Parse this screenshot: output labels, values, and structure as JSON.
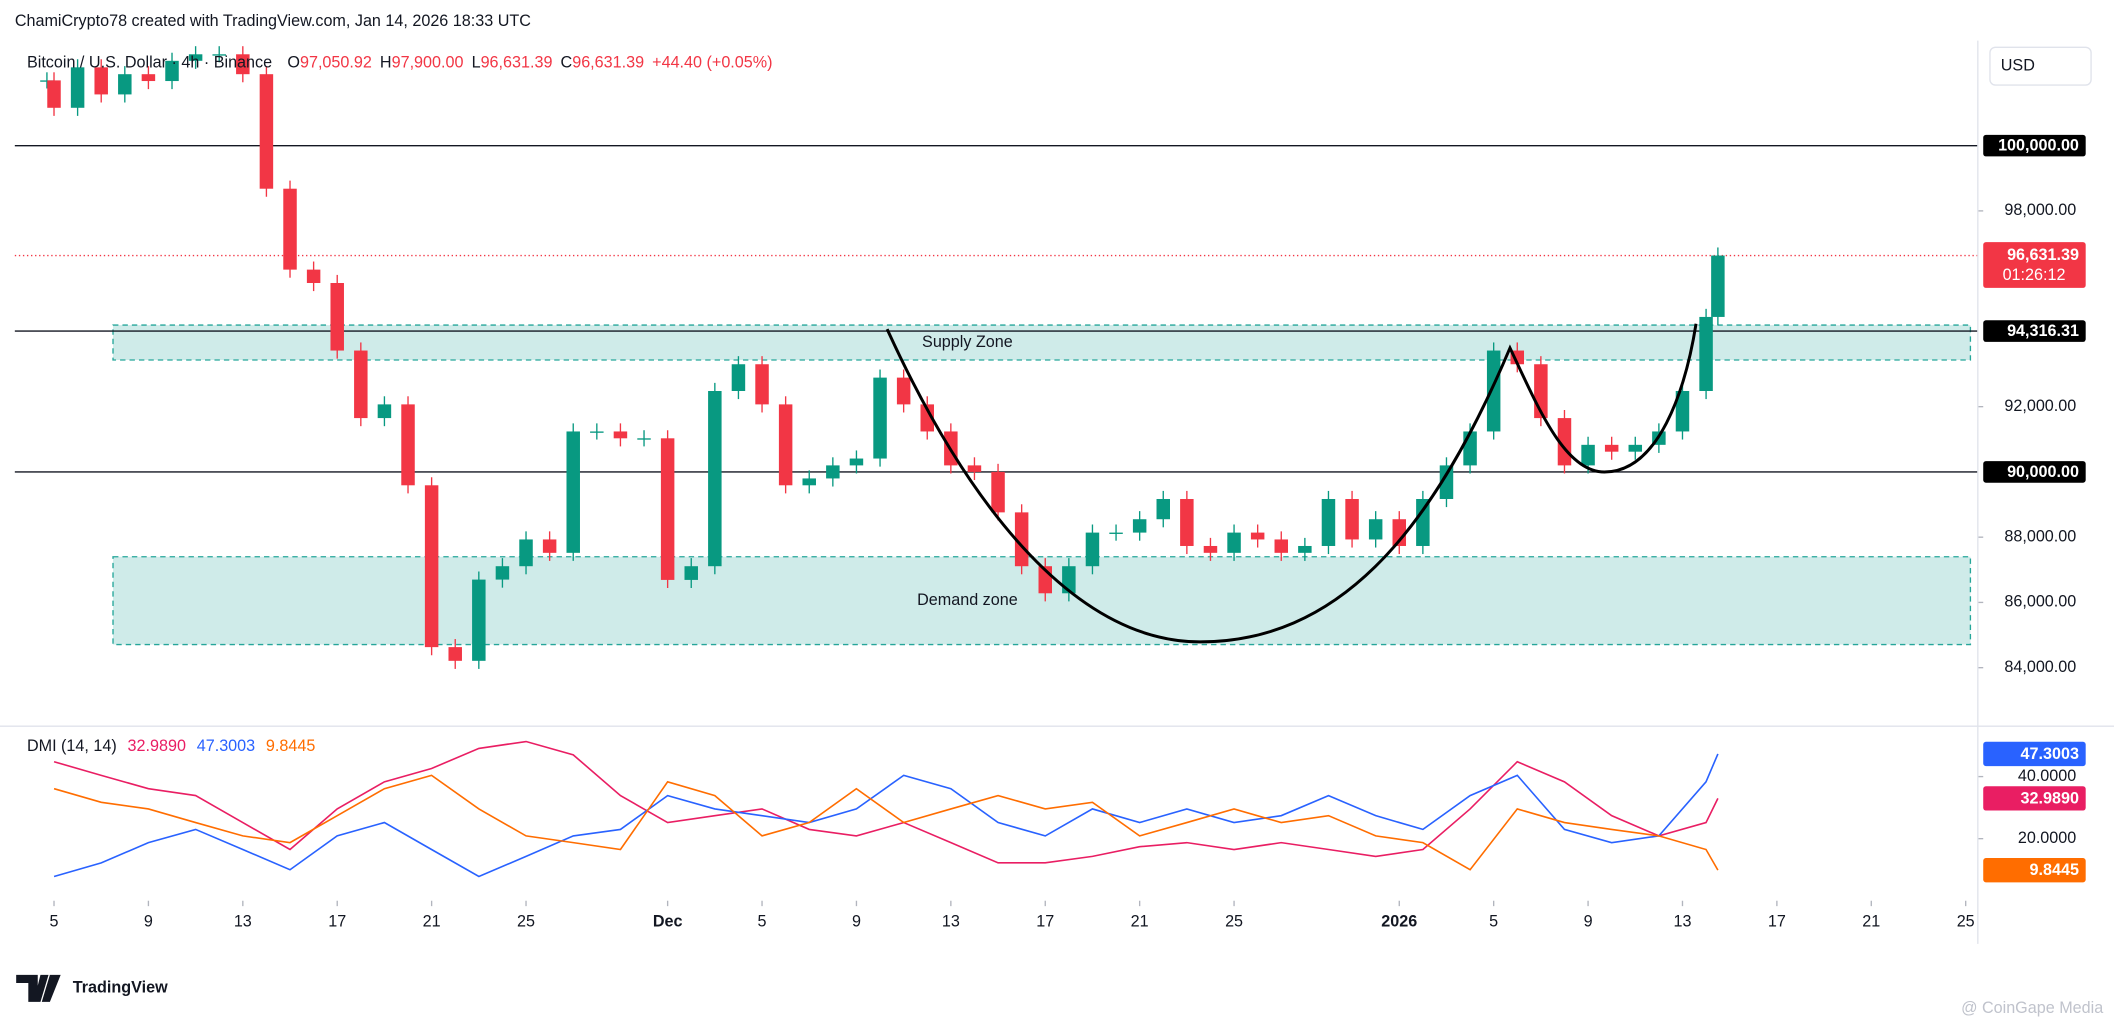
{
  "header": {
    "credit": "ChamiCrypto78 created with TradingView.com, Jan 14, 2026 18:33 UTC",
    "symbol": "Bitcoin / U.S. Dollar · 4h · Binance",
    "ohlc": [
      {
        "key": "O",
        "value": "97,050.92"
      },
      {
        "key": "H",
        "value": "97,900.00"
      },
      {
        "key": "L",
        "value": "96,631.39"
      },
      {
        "key": "C",
        "value": "96,631.39"
      }
    ],
    "change": "+44.40 (+0.05%)",
    "currency": "USD",
    "logo": "TradingView",
    "watermark": "@ CoinGape Media"
  },
  "chart_data": [
    {
      "type": "candlestick",
      "up_color": "#089981",
      "down_color": "#f23645",
      "x": [
        -0.3,
        0,
        1,
        2,
        3,
        4,
        5,
        6,
        7,
        8,
        9,
        10,
        11,
        12,
        13,
        14,
        15,
        16,
        17,
        18,
        19,
        20,
        21,
        22,
        23,
        24,
        25,
        26,
        27,
        28,
        29,
        30,
        31,
        32,
        33,
        34,
        35,
        36,
        37,
        38,
        39,
        40,
        41,
        42,
        43,
        44,
        45,
        46,
        47,
        48,
        49,
        50,
        51,
        52,
        53,
        54,
        55,
        56,
        57,
        58,
        59,
        60,
        61,
        62,
        63,
        64,
        65,
        66,
        67,
        68,
        69,
        70,
        70.5
      ],
      "values": [
        102000,
        101160,
        102400,
        101570,
        102190,
        101980,
        102600,
        102800,
        102800,
        102190,
        98680,
        96200,
        95790,
        93720,
        91650,
        92070,
        89590,
        84630,
        84210,
        86700,
        87110,
        87930,
        87520,
        91240,
        91240,
        91030,
        91030,
        86690,
        87110,
        92480,
        93300,
        92070,
        89590,
        89800,
        90200,
        90410,
        92890,
        92070,
        91240,
        90200,
        90000,
        88760,
        87110,
        86280,
        87110,
        88140,
        88140,
        88550,
        89170,
        87730,
        87520,
        88140,
        87930,
        87520,
        87730,
        89170,
        87930,
        88550,
        87730,
        89170,
        90200,
        91240,
        93720,
        93300,
        91650,
        90200,
        90830,
        90620,
        90830,
        91240,
        92480,
        94750,
        96631.39
      ],
      "xlim": [
        -1.66,
        81.4
      ],
      "ylim": [
        82270,
        103220
      ],
      "yticks": [
        {
          "value": 84000,
          "label": "84,000.00"
        },
        {
          "value": 86000,
          "label": "86,000.00"
        },
        {
          "value": 88000,
          "label": "88,000.00"
        },
        {
          "value": 92000,
          "label": "92,000.00"
        },
        {
          "value": 98000,
          "label": "98,000.00"
        }
      ],
      "levels": [
        {
          "value": 100000,
          "label": "100,000.00"
        },
        {
          "value": 94316.31,
          "label": "94,316.31"
        },
        {
          "value": 90000,
          "label": "90,000.00"
        }
      ],
      "last_price": {
        "value": 96631.39,
        "label": "96,631.39",
        "countdown": "01:26:12",
        "color": "#f23645"
      },
      "zones": [
        {
          "label": "Supply Zone",
          "top": 94500,
          "bottom": 93430,
          "x": [
            2.5,
            81.2
          ]
        },
        {
          "label": "Demand zone",
          "top": 87400,
          "bottom": 84710,
          "x": [
            2.5,
            81.2
          ]
        }
      ],
      "grid": false
    },
    {
      "type": "line",
      "title": "DMI (14, 14)",
      "x": [
        0,
        2,
        4,
        6,
        8,
        10,
        12,
        14,
        16,
        18,
        20,
        22,
        24,
        26,
        28,
        30,
        32,
        34,
        36,
        38,
        40,
        42,
        44,
        46,
        48,
        50,
        52,
        54,
        56,
        58,
        60,
        62,
        64,
        66,
        68,
        70,
        70.5
      ],
      "series": [
        {
          "color": "#e91e63",
          "last_label": "32.9890",
          "values": [
            44.8,
            40.4,
            36.1,
            33.9,
            25.2,
            16.5,
            29.6,
            38.3,
            42.6,
            49.1,
            51.3,
            47.0,
            33.9,
            25.2,
            27.4,
            29.6,
            23.0,
            20.9,
            25.2,
            18.7,
            12.2,
            12.2,
            14.3,
            17.4,
            18.7,
            16.5,
            18.7,
            16.5,
            14.3,
            16.5,
            29.6,
            44.8,
            38.3,
            27.4,
            20.9,
            25.2,
            32.989
          ]
        },
        {
          "color": "#2962ff",
          "last_label": "47.3003",
          "values": [
            7.8,
            12.2,
            18.7,
            23.0,
            16.5,
            10.0,
            20.9,
            25.2,
            16.5,
            7.8,
            14.3,
            20.9,
            23.0,
            33.9,
            29.6,
            27.4,
            25.2,
            29.6,
            40.4,
            36.1,
            25.2,
            20.9,
            29.6,
            25.2,
            29.6,
            25.2,
            27.4,
            33.9,
            27.4,
            23.0,
            33.9,
            40.4,
            23.0,
            18.7,
            20.9,
            38.3,
            47.3003
          ]
        },
        {
          "color": "#ff6d00",
          "last_label": "9.8445",
          "values": [
            36.1,
            31.7,
            29.6,
            25.2,
            20.9,
            18.7,
            27.4,
            36.1,
            40.4,
            29.6,
            20.9,
            18.7,
            16.5,
            38.3,
            33.9,
            20.9,
            25.2,
            36.1,
            25.2,
            29.6,
            33.9,
            29.6,
            31.7,
            20.9,
            25.2,
            29.6,
            25.2,
            27.4,
            20.9,
            18.7,
            10.0,
            29.6,
            25.2,
            23.0,
            20.9,
            16.5,
            9.8445
          ]
        }
      ],
      "xlim": [
        -1.66,
        81.4
      ],
      "ylim": [
        0,
        55.6
      ],
      "yticks": [
        {
          "value": 20,
          "label": "20.0000"
        },
        {
          "value": 40,
          "label": "40.0000"
        }
      ],
      "xticks": [
        {
          "value": 0,
          "label": "5"
        },
        {
          "value": 4,
          "label": "9"
        },
        {
          "value": 8,
          "label": "13"
        },
        {
          "value": 12,
          "label": "17"
        },
        {
          "value": 16,
          "label": "21"
        },
        {
          "value": 20,
          "label": "25"
        },
        {
          "value": 26,
          "label": "Dec"
        },
        {
          "value": 30,
          "label": "5"
        },
        {
          "value": 34,
          "label": "9"
        },
        {
          "value": 38,
          "label": "13"
        },
        {
          "value": 42,
          "label": "17"
        },
        {
          "value": 46,
          "label": "21"
        },
        {
          "value": 50,
          "label": "25"
        },
        {
          "value": 57,
          "label": "2026"
        },
        {
          "value": 61,
          "label": "5"
        },
        {
          "value": 65,
          "label": "9"
        },
        {
          "value": 69,
          "label": "13"
        },
        {
          "value": 73,
          "label": "17"
        },
        {
          "value": 77,
          "label": "21"
        },
        {
          "value": 81,
          "label": "25"
        }
      ],
      "grid": false
    }
  ]
}
